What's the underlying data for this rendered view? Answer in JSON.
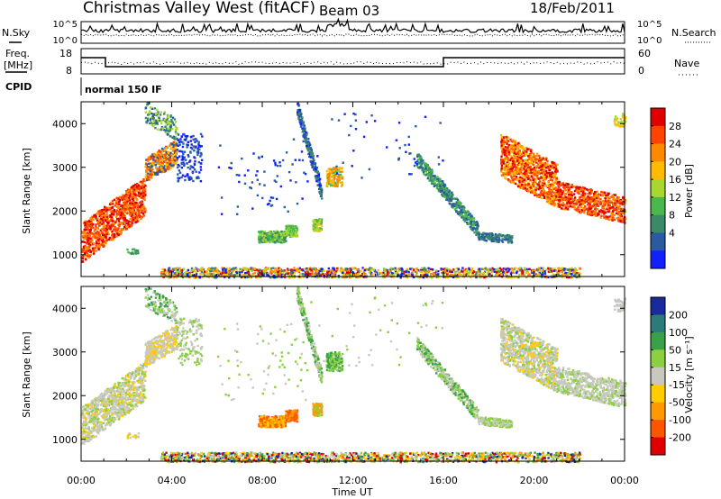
{
  "header": {
    "station": "Christmas Valley West (fitACF)",
    "beam": "Beam 03",
    "date": "18/Feb/2011"
  },
  "noise_panel": {
    "left_label": "N.Sky",
    "right_label": "N.Search",
    "left_ticks": [
      "10^5",
      "10^0"
    ],
    "right_ticks": [
      "10^5",
      "10^0"
    ]
  },
  "freq_panel": {
    "left_label_1": "Freq.",
    "left_label_2": "[MHz]",
    "left_ticks": [
      "18",
      "8"
    ],
    "right_label": "Nave",
    "right_ticks": [
      "60",
      "0"
    ]
  },
  "cpid": {
    "label": "CPID",
    "mode": "normal 150 IF"
  },
  "chart_data": [
    {
      "type": "heatmap",
      "name": "power",
      "ylabel": "Slant Range [km]",
      "xlabel": "",
      "xlim_hours": [
        0,
        24
      ],
      "ylim": [
        500,
        4500
      ],
      "y_ticks": [
        1000,
        2000,
        3000,
        4000
      ],
      "colorbar_label": "Power [dB]",
      "colorbar_ticks": [
        "28",
        "24",
        "20",
        "16",
        "12",
        "8",
        "4"
      ],
      "colorbar_colors": [
        "#e00000",
        "#ff4400",
        "#ff8800",
        "#ffbb00",
        "#a8d830",
        "#4ab84a",
        "#3a8a6a",
        "#2a5aa0",
        "#1020ff"
      ]
    },
    {
      "type": "heatmap",
      "name": "velocity",
      "ylabel": "Slant Range [km]",
      "xlabel": "Time UT",
      "xlim_hours": [
        0,
        24
      ],
      "ylim": [
        500,
        4500
      ],
      "y_ticks": [
        1000,
        2000,
        3000,
        4000
      ],
      "x_ticks": [
        "00:00",
        "04:00",
        "08:00",
        "12:00",
        "16:00",
        "20:00",
        "00:00"
      ],
      "colorbar_label": "Velocity [m s⁻¹]",
      "colorbar_ticks": [
        "200",
        "100",
        "50",
        "15",
        "-15",
        "-50",
        "-100",
        "-200"
      ],
      "colorbar_colors": [
        "#1a2a9a",
        "#2d7a7a",
        "#3aa04a",
        "#8ad040",
        "#c8c8c0",
        "#ffcc00",
        "#ff9900",
        "#ff5500",
        "#e00000"
      ]
    }
  ]
}
